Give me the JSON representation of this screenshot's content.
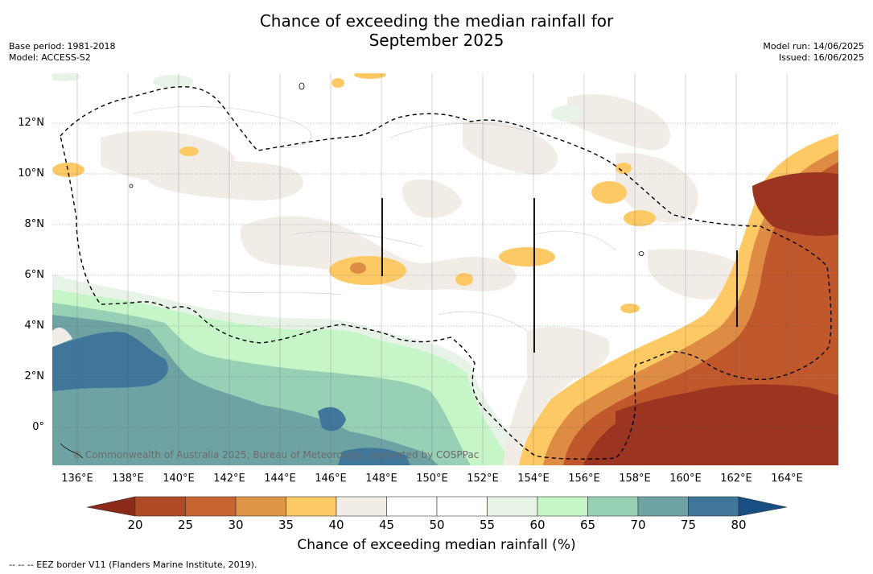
{
  "title_line1": "Chance of exceeding the median rainfall for",
  "title_line2": "September 2025",
  "base_period": "Base period: 1981-2018",
  "model": "Model: ACCESS-S2",
  "model_run": "Model run: 14/06/2025",
  "issued": "Issued: 16/06/2025",
  "copyright": "© Commonwealth of Australia 2025, Bureau of Meteorology, supported by COSPPac",
  "footnote": "--  --  -- EEZ border V11 (Flanders Marine Institute, 2019).",
  "colorbar_title": "Chance of exceeding median rainfall (%)",
  "colorbar": {
    "ticks": [
      "20",
      "25",
      "30",
      "35",
      "40",
      "45",
      "50",
      "55",
      "60",
      "65",
      "70",
      "75",
      "80"
    ],
    "colors": [
      "#8c2a1a",
      "#b04a25",
      "#c8642f",
      "#df9547",
      "#fdc965",
      "#f2ece6",
      "#ffffff",
      "#ffffff",
      "#e8f3e7",
      "#c6f5c8",
      "#98d0b6",
      "#6fa3a3",
      "#407699",
      "#174f83"
    ]
  },
  "lat_labels": [
    "12°N",
    "10°N",
    "8°N",
    "6°N",
    "4°N",
    "2°N",
    "0°"
  ],
  "lon_labels": [
    "136°E",
    "138°E",
    "140°E",
    "142°E",
    "144°E",
    "146°E",
    "148°E",
    "150°E",
    "152°E",
    "154°E",
    "156°E",
    "158°E",
    "160°E",
    "162°E",
    "164°E"
  ],
  "map_colors": {
    "dark_brown": "#9b3420",
    "brown": "#c0582b",
    "orange": "#de8c44",
    "yellow": "#fdc965",
    "beige": "#f2ece6",
    "white": "#ffffff",
    "pale_green": "#e8f3e7",
    "light_green": "#c6f5c8",
    "mint": "#98d0b6",
    "teal": "#6fa3a3",
    "dark_teal": "#407699"
  }
}
